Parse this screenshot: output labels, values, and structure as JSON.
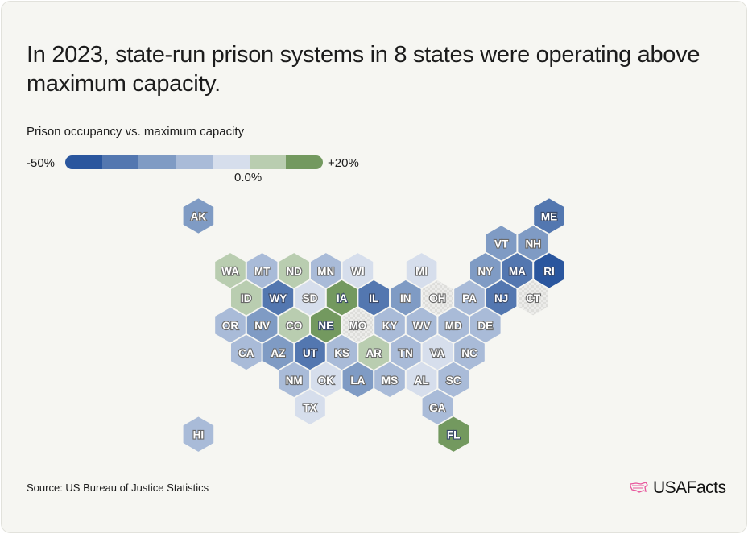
{
  "title": "In 2023, state-run prison systems in 8 states were operating above maximum capacity.",
  "source": "Source: US Bureau of Justice Statistics",
  "logo": "USAFacts",
  "chart_data": {
    "type": "hex-tile-map",
    "subtitle": "Prison occupancy vs. maximum capacity",
    "legend": {
      "min_label": "-50%",
      "max_label": "+20%",
      "mid_label": "0.0%",
      "bins": [
        {
          "range": "-50% to -40%",
          "color": "#2a569e"
        },
        {
          "range": "-40% to -30%",
          "color": "#5377b0"
        },
        {
          "range": "-30% to -20%",
          "color": "#7f9bc4"
        },
        {
          "range": "-20% to -10%",
          "color": "#a9bbd8"
        },
        {
          "range": "-10% to 0%",
          "color": "#d6deec"
        },
        {
          "range": "0% to +10%",
          "color": "#b9cdb0"
        },
        {
          "range": "+10% to +20%",
          "color": "#73995f"
        }
      ],
      "no_data_color": "#e4e4e0"
    },
    "states": [
      {
        "abbr": "AK",
        "row": 0,
        "col": -1,
        "bin": 2
      },
      {
        "abbr": "ME",
        "row": 0,
        "col": 10,
        "bin": 1
      },
      {
        "abbr": "VT",
        "row": 1,
        "col": 8,
        "bin": 2
      },
      {
        "abbr": "NH",
        "row": 1,
        "col": 9,
        "bin": 2
      },
      {
        "abbr": "WA",
        "row": 2,
        "col": 0,
        "bin": 5
      },
      {
        "abbr": "MT",
        "row": 2,
        "col": 1,
        "bin": 3
      },
      {
        "abbr": "ND",
        "row": 2,
        "col": 2,
        "bin": 5
      },
      {
        "abbr": "MN",
        "row": 2,
        "col": 3,
        "bin": 3
      },
      {
        "abbr": "WI",
        "row": 2,
        "col": 4,
        "bin": 4
      },
      {
        "abbr": "MI",
        "row": 2,
        "col": 6,
        "bin": 4
      },
      {
        "abbr": "NY",
        "row": 2,
        "col": 8,
        "bin": 2
      },
      {
        "abbr": "MA",
        "row": 2,
        "col": 9,
        "bin": 1
      },
      {
        "abbr": "RI",
        "row": 2,
        "col": 10,
        "bin": 0
      },
      {
        "abbr": "ID",
        "row": 3,
        "col": 0,
        "bin": 5
      },
      {
        "abbr": "WY",
        "row": 3,
        "col": 1,
        "bin": 1
      },
      {
        "abbr": "SD",
        "row": 3,
        "col": 2,
        "bin": 4
      },
      {
        "abbr": "IA",
        "row": 3,
        "col": 3,
        "bin": 6
      },
      {
        "abbr": "IL",
        "row": 3,
        "col": 4,
        "bin": 1
      },
      {
        "abbr": "IN",
        "row": 3,
        "col": 5,
        "bin": 2
      },
      {
        "abbr": "OH",
        "row": 3,
        "col": 6,
        "bin": null
      },
      {
        "abbr": "PA",
        "row": 3,
        "col": 7,
        "bin": 3
      },
      {
        "abbr": "NJ",
        "row": 3,
        "col": 8,
        "bin": 1
      },
      {
        "abbr": "CT",
        "row": 3,
        "col": 9,
        "bin": null
      },
      {
        "abbr": "OR",
        "row": 4,
        "col": 0,
        "bin": 3
      },
      {
        "abbr": "NV",
        "row": 4,
        "col": 1,
        "bin": 2
      },
      {
        "abbr": "CO",
        "row": 4,
        "col": 2,
        "bin": 5
      },
      {
        "abbr": "NE",
        "row": 4,
        "col": 3,
        "bin": 6
      },
      {
        "abbr": "MO",
        "row": 4,
        "col": 4,
        "bin": null
      },
      {
        "abbr": "KY",
        "row": 4,
        "col": 5,
        "bin": 3
      },
      {
        "abbr": "WV",
        "row": 4,
        "col": 6,
        "bin": 3
      },
      {
        "abbr": "MD",
        "row": 4,
        "col": 7,
        "bin": 3
      },
      {
        "abbr": "DE",
        "row": 4,
        "col": 8,
        "bin": 3
      },
      {
        "abbr": "CA",
        "row": 5,
        "col": 0,
        "bin": 3
      },
      {
        "abbr": "AZ",
        "row": 5,
        "col": 1,
        "bin": 2
      },
      {
        "abbr": "UT",
        "row": 5,
        "col": 2,
        "bin": 1
      },
      {
        "abbr": "KS",
        "row": 5,
        "col": 3,
        "bin": 3
      },
      {
        "abbr": "AR",
        "row": 5,
        "col": 4,
        "bin": 5
      },
      {
        "abbr": "TN",
        "row": 5,
        "col": 5,
        "bin": 3
      },
      {
        "abbr": "VA",
        "row": 5,
        "col": 6,
        "bin": 4
      },
      {
        "abbr": "NC",
        "row": 5,
        "col": 7,
        "bin": 3
      },
      {
        "abbr": "NM",
        "row": 6,
        "col": 2,
        "bin": 3
      },
      {
        "abbr": "OK",
        "row": 6,
        "col": 3,
        "bin": 4
      },
      {
        "abbr": "LA",
        "row": 6,
        "col": 4,
        "bin": 2
      },
      {
        "abbr": "MS",
        "row": 6,
        "col": 5,
        "bin": 3
      },
      {
        "abbr": "AL",
        "row": 6,
        "col": 6,
        "bin": 4
      },
      {
        "abbr": "SC",
        "row": 6,
        "col": 7,
        "bin": 3
      },
      {
        "abbr": "TX",
        "row": 7,
        "col": 2,
        "bin": 4
      },
      {
        "abbr": "GA",
        "row": 7,
        "col": 6,
        "bin": 3
      },
      {
        "abbr": "HI",
        "row": 8,
        "col": -1,
        "bin": 3
      },
      {
        "abbr": "FL",
        "row": 8,
        "col": 7,
        "bin": 6
      }
    ]
  }
}
